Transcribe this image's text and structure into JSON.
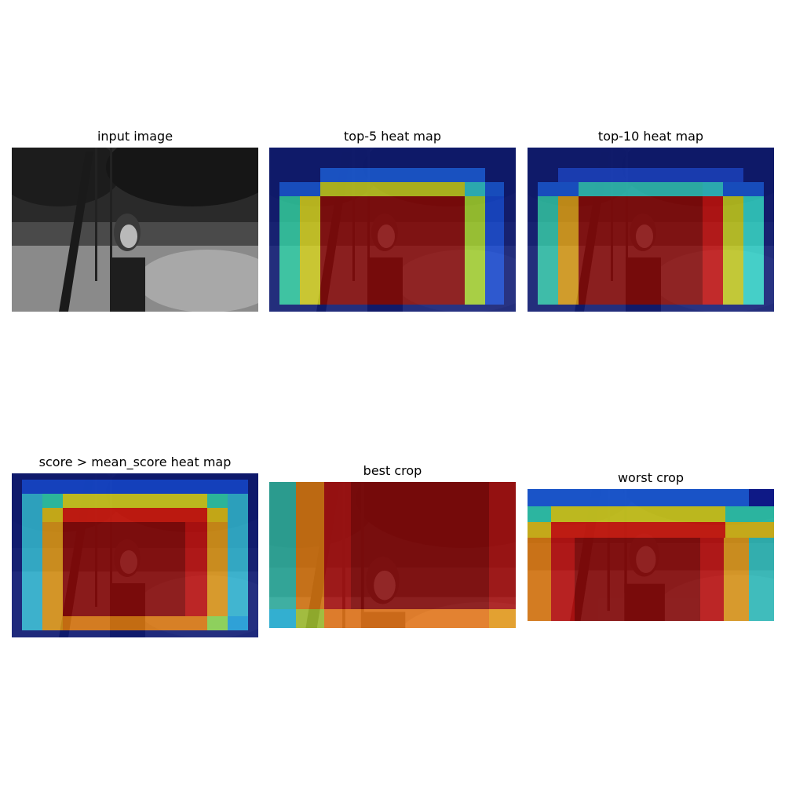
{
  "panels": {
    "input": {
      "title": "input image"
    },
    "top5": {
      "title": "top-5 heat map"
    },
    "top10": {
      "title": "top-10 heat map"
    },
    "mean": {
      "title": "score > mean_score heat map"
    },
    "best": {
      "title": "best crop"
    },
    "worst": {
      "title": "worst crop"
    }
  },
  "colormap": {
    "name": "jet",
    "navy": "#0d1a7a",
    "blue": "#0a3cd6",
    "cyan": "#2fd0c8",
    "yellow": "#d8d420",
    "orange": "#e07a10",
    "red": "#a60a0a"
  }
}
